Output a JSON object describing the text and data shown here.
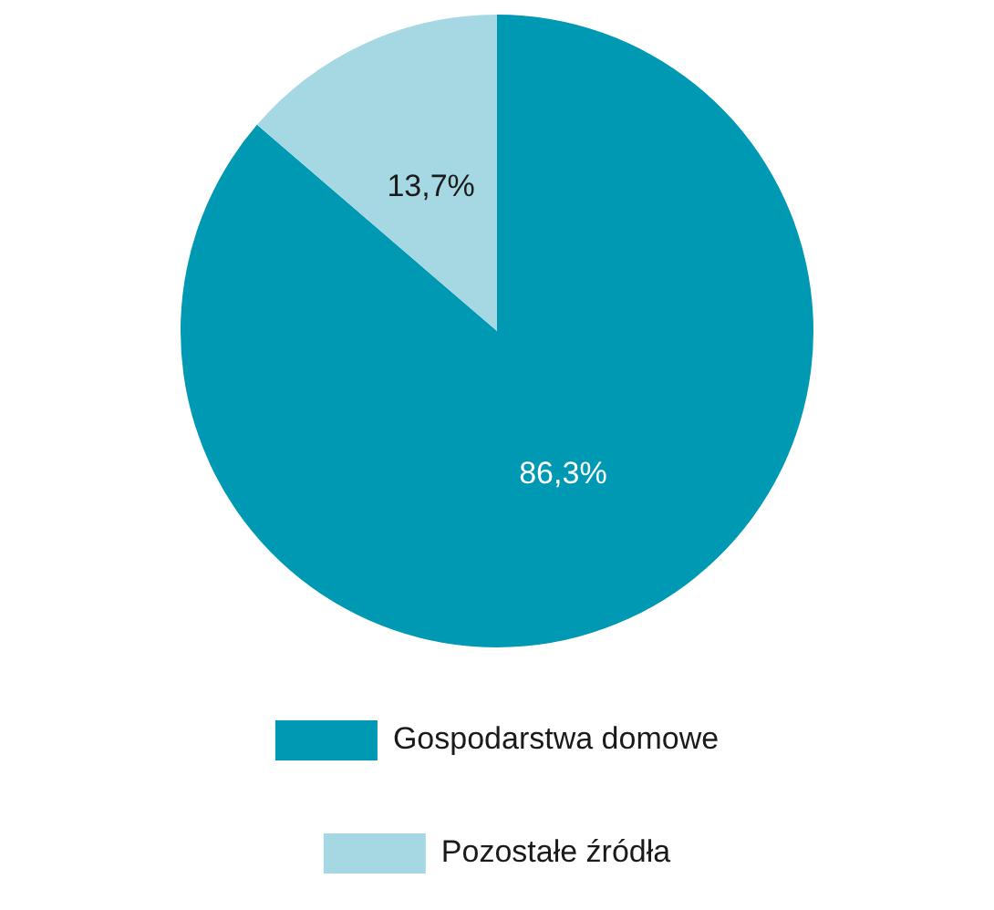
{
  "chart_data": {
    "type": "pie",
    "categories": [
      "Gospodarstwa domowe",
      "Pozostałe źródła"
    ],
    "values": [
      86.3,
      13.7
    ],
    "colors": [
      "#0099b4",
      "#a6d8e3"
    ],
    "value_labels": [
      "86,3%",
      "13,7%"
    ],
    "legend": "bottom"
  }
}
